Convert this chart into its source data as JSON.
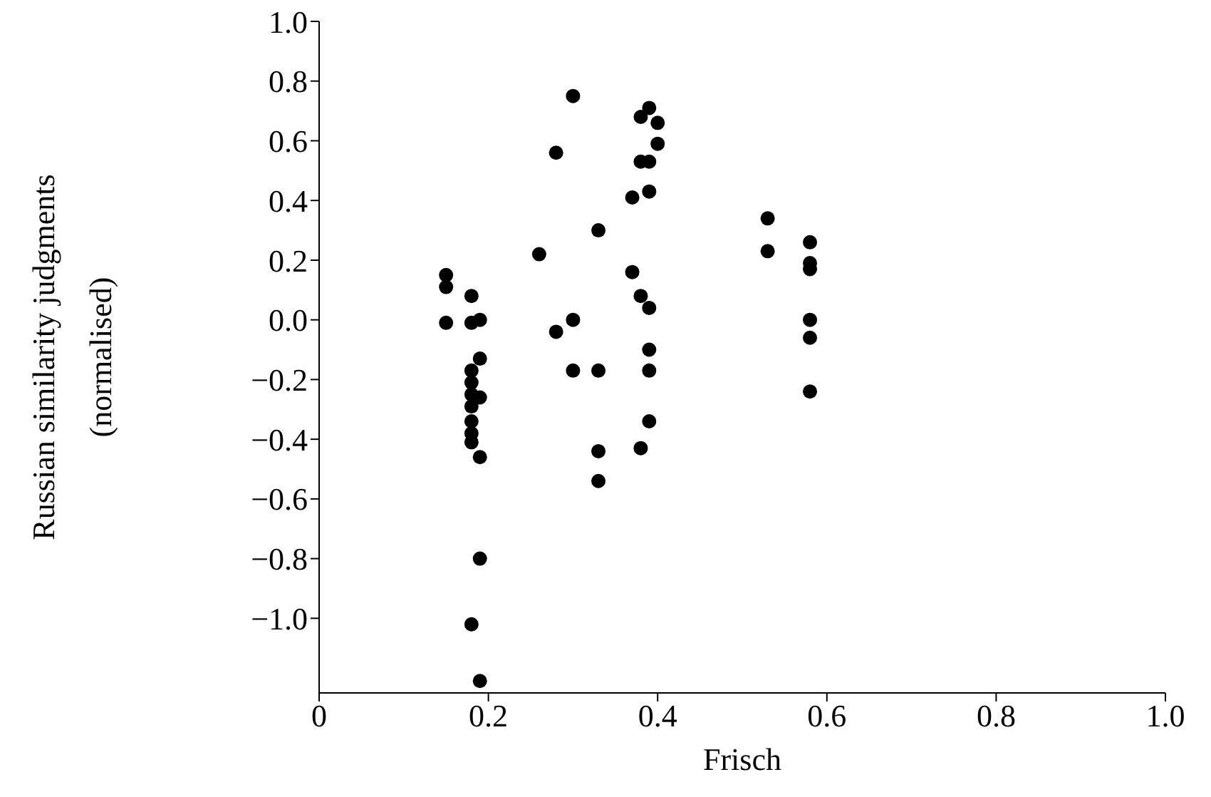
{
  "chart_data": {
    "type": "scatter",
    "xlabel": "Frisch",
    "ylabel": "Russian similarity judgments\n(normalised)",
    "x": [
      0.15,
      0.15,
      0.15,
      0.18,
      0.18,
      0.18,
      0.18,
      0.18,
      0.18,
      0.18,
      0.18,
      0.18,
      0.18,
      0.19,
      0.19,
      0.19,
      0.19,
      0.19,
      0.19,
      0.3,
      0.39,
      0.38,
      0.4,
      0.4,
      0.28,
      0.38,
      0.39,
      0.39,
      0.37,
      0.33,
      0.26,
      0.37,
      0.38,
      0.39,
      0.3,
      0.28,
      0.39,
      0.3,
      0.33,
      0.39,
      0.39,
      0.33,
      0.38,
      0.33,
      0.53,
      0.53,
      0.58,
      0.58,
      0.58,
      0.58,
      0.58,
      0.58
    ],
    "values": [
      0.15,
      0.11,
      -0.01,
      0.08,
      -0.01,
      -0.17,
      -0.21,
      -0.25,
      -0.29,
      -0.34,
      -0.38,
      -0.41,
      -1.02,
      0.0,
      -0.13,
      -0.26,
      -0.46,
      -0.8,
      -1.21,
      0.75,
      0.71,
      0.68,
      0.66,
      0.59,
      0.56,
      0.53,
      0.53,
      0.43,
      0.41,
      0.3,
      0.22,
      0.16,
      0.08,
      0.04,
      0.0,
      -0.04,
      -0.1,
      -0.17,
      -0.17,
      -0.17,
      -0.34,
      -0.44,
      -0.43,
      -0.54,
      0.34,
      0.23,
      0.26,
      0.19,
      0.17,
      0.0,
      -0.06,
      -0.24
    ],
    "color": "#000000",
    "marker": "circle",
    "xlim": [
      0,
      1.0
    ],
    "xticks": [
      0,
      0.2,
      0.4,
      0.6,
      0.8,
      {
        "value": 1.0,
        "label": "1.0"
      }
    ],
    "ylim": [
      -1.25,
      1.0
    ],
    "yticks": [
      {
        "value": -1.0,
        "label": "−1.0"
      },
      {
        "value": -0.8,
        "label": "−0.8"
      },
      {
        "value": -0.6,
        "label": "−0.6"
      },
      {
        "value": -0.4,
        "label": "−0.4"
      },
      {
        "value": -0.2,
        "label": "−0.2"
      },
      {
        "value": 0.0,
        "label": "0.0"
      },
      0.2,
      0.4,
      0.6,
      0.8,
      {
        "value": 1.0,
        "label": "1.0"
      }
    ],
    "grid": false,
    "legend": false
  }
}
